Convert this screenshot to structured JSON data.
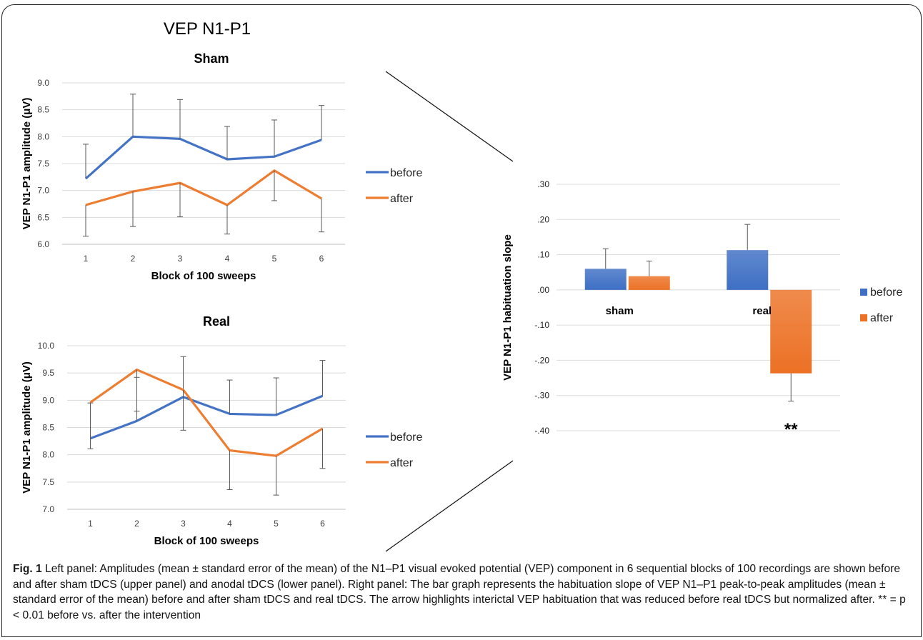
{
  "figure_title": "VEP N1-P1",
  "colors": {
    "before": "#4472C4",
    "after": "#ED7D31",
    "bar_before": "#3E6FC4",
    "bar_after": "#EC7125"
  },
  "chart_data": [
    {
      "type": "line",
      "title": "Sham",
      "xlabel": "Block of 100 sweeps",
      "ylabel": "VEP N1-P1 amplitude (μV)",
      "x": [
        1,
        2,
        3,
        4,
        5,
        6
      ],
      "ylim": [
        6.0,
        9.0
      ],
      "yticks": [
        "6.0",
        "6.5",
        "7.0",
        "7.5",
        "8.0",
        "8.5",
        "9.0"
      ],
      "grid": true,
      "legend": "right",
      "series": [
        {
          "name": "before",
          "values": [
            7.22,
            8.0,
            7.96,
            7.58,
            7.63,
            7.94
          ],
          "error_upper": [
            0.64,
            0.79,
            0.73,
            0.61,
            0.68,
            0.64
          ]
        },
        {
          "name": "after",
          "values": [
            6.73,
            6.98,
            7.14,
            6.73,
            7.37,
            6.85
          ],
          "error_lower": [
            0.58,
            0.65,
            0.63,
            0.54,
            0.56,
            0.62
          ]
        }
      ]
    },
    {
      "type": "line",
      "title": "Real",
      "xlabel": "Block of 100 sweeps",
      "ylabel": "VEP N1-P1 amplitude (μV)",
      "x": [
        1,
        2,
        3,
        4,
        5,
        6
      ],
      "ylim": [
        7.0,
        10.0
      ],
      "yticks": [
        "7.0",
        "7.5",
        "8.0",
        "8.5",
        "9.0",
        "9.5",
        "10.0"
      ],
      "grid": true,
      "legend": "right",
      "series": [
        {
          "name": "before",
          "values": [
            8.3,
            8.62,
            9.06,
            8.75,
            8.73,
            9.08
          ],
          "error_upper": [
            0.65,
            0.8,
            0.74,
            0.62,
            0.68,
            0.65
          ]
        },
        {
          "name": "after",
          "values": [
            8.96,
            9.56,
            9.19,
            8.08,
            7.98,
            8.48
          ],
          "error_lower": [
            0.85,
            0.76,
            0.74,
            0.72,
            0.72,
            0.73
          ]
        }
      ]
    },
    {
      "type": "bar",
      "xlabel": "",
      "ylabel": "VEP N1-P1 habituation slope",
      "categories": [
        "sham",
        "real"
      ],
      "ylim": [
        -0.4,
        0.3
      ],
      "yticks": [
        ".30",
        ".20",
        ".10",
        ".00",
        "-.10",
        "-.20",
        "-.30",
        "-.40"
      ],
      "grid": true,
      "legend": "right",
      "series": [
        {
          "name": "before",
          "values": [
            0.06,
            0.113
          ],
          "error": [
            0.057,
            0.073
          ]
        },
        {
          "name": "after",
          "values": [
            0.039,
            -0.237
          ],
          "error": [
            0.043,
            0.079
          ]
        }
      ],
      "annotations": [
        "**"
      ]
    }
  ],
  "caption": {
    "fig_label": "Fig. 1",
    "text": " Left panel: Amplitudes (mean ± standard error of the mean) of the N1–P1 visual evoked potential (VEP) component in 6 sequential blocks of 100 recordings are shown before and after sham tDCS (upper panel) and anodal tDCS (lower panel). Right panel: The bar graph represents the habituation slope of VEP N1–P1 peak-to-peak amplitudes (mean ± standard error of the mean) before and after sham tDCS and real tDCS. The arrow highlights interictal VEP habituation that was reduced before real tDCS but normalized after. ** = p < 0.01 before vs. after the intervention"
  }
}
